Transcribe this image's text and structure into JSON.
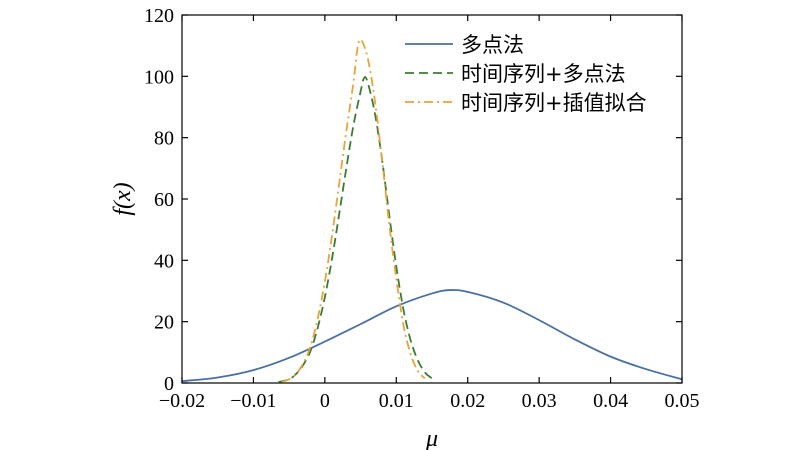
{
  "chart_data": {
    "type": "line",
    "xlabel": "μ",
    "ylabel": "f(x)",
    "xlim": [
      -0.02,
      0.05
    ],
    "ylim": [
      0,
      120
    ],
    "xticks": [
      -0.02,
      -0.01,
      0,
      0.01,
      0.02,
      0.03,
      0.04,
      0.05
    ],
    "xtick_labels": [
      "−0.02",
      "−0.01",
      "0",
      "0.01",
      "0.02",
      "0.03",
      "0.04",
      "0.05"
    ],
    "yticks": [
      0,
      20,
      40,
      60,
      80,
      100,
      120
    ],
    "ytick_labels": [
      "0",
      "20",
      "40",
      "60",
      "80",
      "100",
      "120"
    ],
    "grid": false,
    "legend_position": "top-right",
    "series": [
      {
        "name": "多点法",
        "color": "#4a6fa5",
        "style": "solid",
        "x": [
          -0.02,
          -0.015,
          -0.01,
          -0.005,
          0,
          0.005,
          0.01,
          0.015,
          0.0175,
          0.02,
          0.025,
          0.03,
          0.035,
          0.04,
          0.045,
          0.05
        ],
        "y": [
          0.6,
          1.8,
          4.2,
          8.2,
          13.5,
          19.2,
          25.0,
          29.2,
          30.3,
          29.7,
          26.2,
          20.5,
          14.2,
          8.6,
          4.5,
          1.2
        ]
      },
      {
        "name": "时间序列+多点法",
        "color": "#3a7d32",
        "style": "dashed",
        "x": [
          -0.0065,
          -0.005,
          -0.004,
          -0.003,
          -0.002,
          -0.001,
          0,
          0.001,
          0.002,
          0.003,
          0.004,
          0.005,
          0.0055,
          0.006,
          0.007,
          0.008,
          0.009,
          0.01,
          0.011,
          0.012,
          0.013,
          0.014,
          0.015,
          0.0155
        ],
        "y": [
          0.3,
          1.2,
          3.0,
          6.0,
          10.5,
          18.0,
          28.0,
          40.5,
          55.0,
          70.0,
          84.0,
          95.0,
          99.5,
          98.0,
          88.0,
          73.0,
          55.0,
          38.0,
          24.0,
          14.0,
          7.5,
          3.5,
          1.5,
          0.6
        ]
      },
      {
        "name": "时间序列+插值拟合",
        "color": "#e8a33a",
        "style": "dashdot",
        "x": [
          -0.006,
          -0.005,
          -0.004,
          -0.003,
          -0.002,
          -0.001,
          0,
          0.001,
          0.002,
          0.003,
          0.004,
          0.0045,
          0.005,
          0.006,
          0.007,
          0.008,
          0.009,
          0.01,
          0.011,
          0.012,
          0.013,
          0.014
        ],
        "y": [
          0.4,
          1.2,
          3.0,
          6.5,
          12.0,
          21.0,
          33.0,
          48.0,
          65.0,
          82.0,
          98.0,
          108.0,
          112.0,
          106.0,
          92.0,
          73.0,
          52.0,
          34.0,
          19.0,
          9.5,
          4.0,
          1.5
        ]
      }
    ]
  }
}
